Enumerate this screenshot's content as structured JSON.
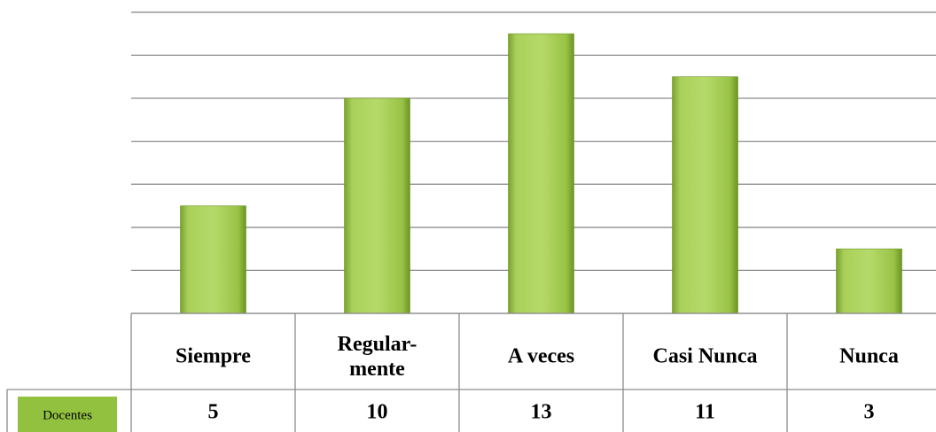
{
  "chart_data": {
    "type": "bar",
    "categories": [
      "Siempre",
      "Regular-\nmente",
      "A veces",
      "Casi Nunca",
      "Nunca"
    ],
    "series": [
      {
        "name": "Docentes",
        "color": "#92c13f",
        "values": [
          5,
          10,
          13,
          11,
          3
        ]
      }
    ],
    "ylim": [
      0,
      14
    ],
    "yticks": [
      0,
      2,
      4,
      6,
      8,
      10,
      12,
      14
    ],
    "grid": true
  }
}
